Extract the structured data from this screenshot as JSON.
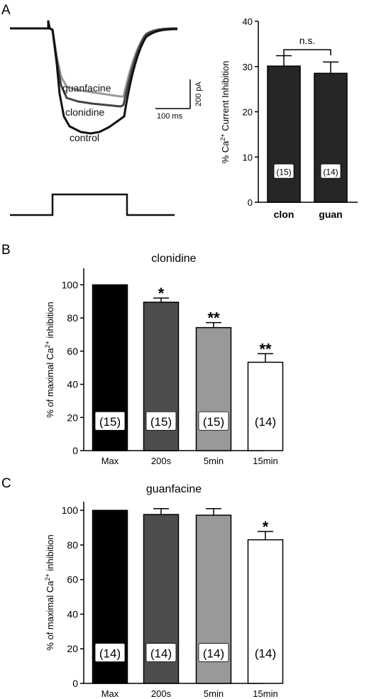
{
  "panel_labels": {
    "a": "A",
    "b": "B",
    "c": "C"
  },
  "traces_panel": {
    "trace_labels": {
      "guanfacine": "guanfacine",
      "clonidine": "clonidine",
      "control": "control"
    },
    "scale_bar": {
      "time": "100 ms",
      "current": "200 pA"
    },
    "colors": {
      "control": "#111111",
      "clonidine": "#444444",
      "guanfacine": "#9a9a9a",
      "voltage_step": "#111111"
    }
  },
  "chart_data": [
    {
      "panel": "A",
      "type": "bar",
      "ylabel_parts": [
        "% Ca",
        "2+",
        " Current Inhibition"
      ],
      "categories": [
        "clon",
        "guan"
      ],
      "values": [
        30.1,
        28.5
      ],
      "errors": [
        2.3,
        2.5
      ],
      "n_labels": [
        "(15)",
        "(14)"
      ],
      "significance": {
        "label": "n.s.",
        "between": [
          0,
          1
        ]
      },
      "ylim": [
        0,
        40
      ],
      "yticks": [
        0,
        10,
        20,
        30,
        40
      ],
      "bar_colors": [
        "#262626",
        "#262626"
      ],
      "n_label_boxed": [
        true,
        true
      ]
    },
    {
      "panel": "B",
      "type": "bar",
      "title": "clonidine",
      "ylabel_parts": [
        "% of maximal Ca",
        "2+",
        " inhibition"
      ],
      "categories": [
        "Max",
        "200s",
        "5min",
        "15min"
      ],
      "values": [
        100,
        89.5,
        74.2,
        53.3
      ],
      "errors": [
        0,
        2.5,
        3.0,
        5.2
      ],
      "annotations": [
        "",
        "*",
        "**",
        "**"
      ],
      "n_labels": [
        "(15)",
        "(15)",
        "(15)",
        "(14)"
      ],
      "ylim": [
        0,
        110
      ],
      "yticks": [
        0,
        20,
        40,
        60,
        80,
        100
      ],
      "bar_colors": [
        "#000000",
        "#4d4d4d",
        "#999999",
        "#ffffff"
      ],
      "n_label_boxed": [
        true,
        true,
        true,
        false
      ]
    },
    {
      "panel": "C",
      "type": "bar",
      "title": "guanfacine",
      "ylabel_parts": [
        "% of maximal Ca",
        "2+",
        " inhibition"
      ],
      "categories": [
        "Max",
        "200s",
        "5min",
        "15min"
      ],
      "values": [
        100,
        97.6,
        97.2,
        83.0
      ],
      "errors": [
        0,
        3.4,
        3.8,
        4.8
      ],
      "annotations": [
        "",
        "",
        "",
        "*"
      ],
      "n_labels": [
        "(14)",
        "(14)",
        "(14)",
        "(14)"
      ],
      "ylim": [
        0,
        105
      ],
      "yticks": [
        0,
        20,
        40,
        60,
        80,
        100
      ],
      "bar_colors": [
        "#000000",
        "#4d4d4d",
        "#999999",
        "#ffffff"
      ],
      "n_label_boxed": [
        true,
        true,
        true,
        false
      ]
    }
  ]
}
